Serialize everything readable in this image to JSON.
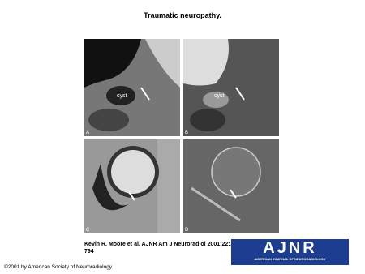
{
  "header": {
    "title": "Traumatic neuropathy."
  },
  "panels": [
    {
      "label": "A",
      "annotation": "cyst"
    },
    {
      "label": "B",
      "annotation": "cyst"
    },
    {
      "label": "C"
    },
    {
      "label": "D"
    }
  ],
  "citation": "Kevin R. Moore et al. AJNR Am J Neuroradiol 2001;22:786-794",
  "logo": {
    "title": "AJNR",
    "subtitle": "AMERICAN JOURNAL OF NEURORADIOLOGY"
  },
  "copyright": "©2001 by American Society of Neuroradiology"
}
